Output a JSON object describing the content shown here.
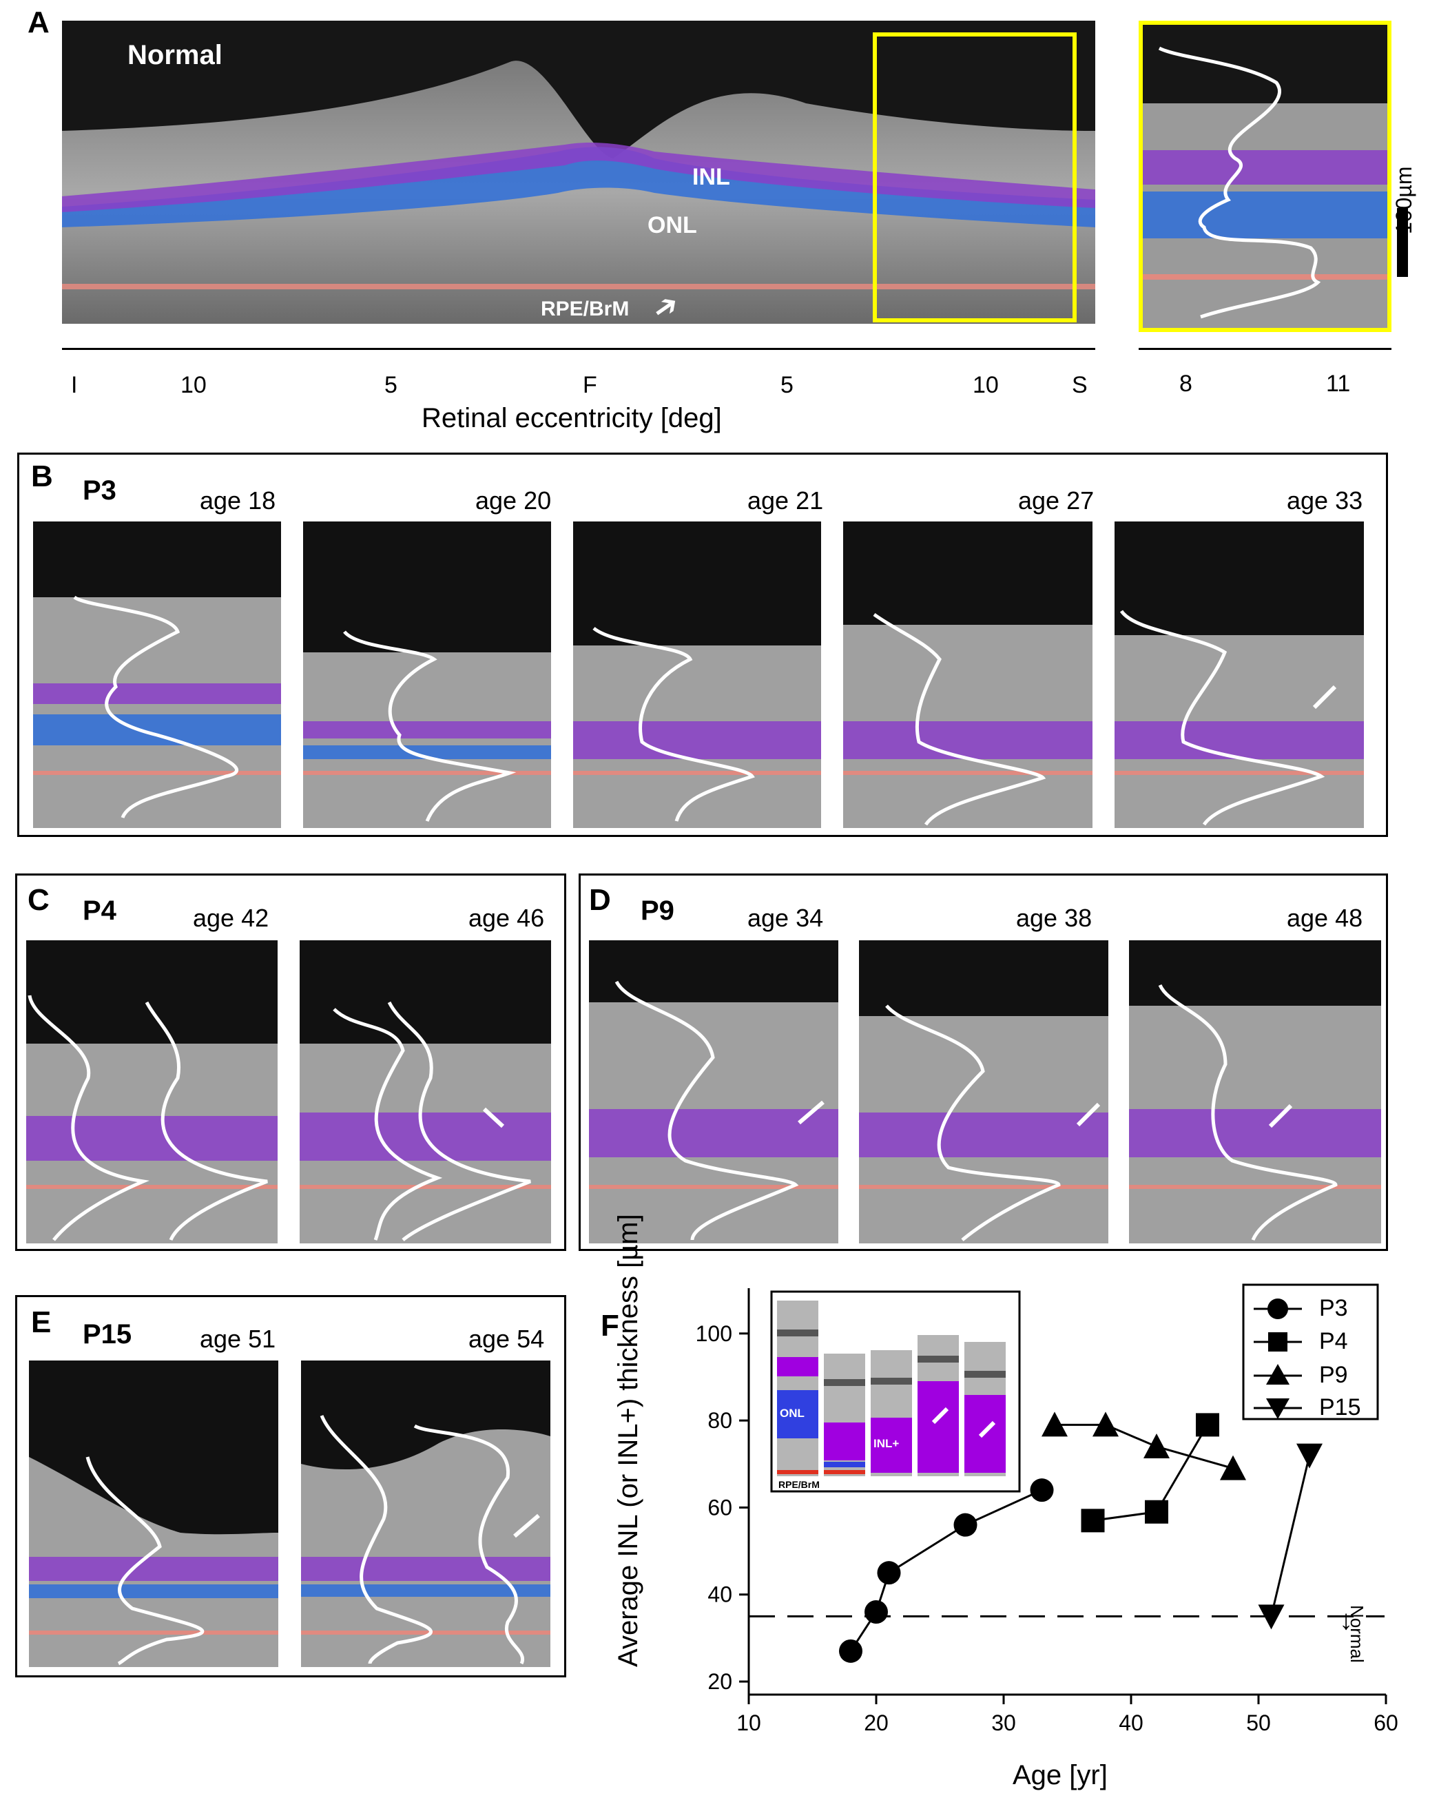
{
  "panelA": {
    "label": "A",
    "normal": "Normal",
    "inl": "INL",
    "onl": "ONL",
    "rpe": "RPE/BrM",
    "scale": "100µm",
    "axis_ticks": [
      "I",
      "10",
      "5",
      "F",
      "5",
      "10",
      "S"
    ],
    "axis_label": "Retinal eccentricity [deg]",
    "inset_ticks": [
      "8",
      "11"
    ],
    "colors": {
      "inl": "#8a3fc8",
      "onl": "#2f6fd8",
      "rpe": "#e08a80",
      "box": "#ffff00"
    }
  },
  "panelB": {
    "label": "B",
    "patient": "P3",
    "ages": [
      "age 18",
      "age 20",
      "age 21",
      "age 27",
      "age 33"
    ]
  },
  "panelC": {
    "label": "C",
    "patient": "P4",
    "ages": [
      "age 42",
      "age 46"
    ]
  },
  "panelD": {
    "label": "D",
    "patient": "P9",
    "ages": [
      "age 34",
      "age 38",
      "age 48"
    ]
  },
  "panelE": {
    "label": "E",
    "patient": "P15",
    "ages": [
      "age 51",
      "age 54"
    ]
  },
  "panelF": {
    "label": "F",
    "inset": {
      "onl": "ONL",
      "inl_plus": "INL+",
      "rpe": "RPE/BrM"
    },
    "normal_label": "Normal",
    "chart_data": {
      "type": "scatter",
      "title": "",
      "xlabel": "Age [yr]",
      "ylabel": "Average INL (or INL+) thickness [µm]",
      "xlim": [
        10,
        60
      ],
      "ylim": [
        17,
        112
      ],
      "xticks": [
        10,
        20,
        30,
        40,
        50,
        60
      ],
      "yticks": [
        20,
        40,
        60,
        80,
        100
      ],
      "normal_line": 35,
      "series": [
        {
          "name": "P3",
          "marker": "circle",
          "x": [
            18,
            20,
            21,
            27,
            33
          ],
          "y": [
            27,
            36,
            45,
            56,
            64
          ]
        },
        {
          "name": "P4",
          "marker": "square",
          "x": [
            37,
            42,
            46
          ],
          "y": [
            57,
            59,
            79
          ]
        },
        {
          "name": "P9",
          "marker": "triangle-up",
          "x": [
            34,
            38,
            42,
            48
          ],
          "y": [
            79,
            79,
            74,
            69
          ]
        },
        {
          "name": "P15",
          "marker": "triangle-down",
          "x": [
            51,
            54
          ],
          "y": [
            35,
            72
          ]
        }
      ],
      "legend": "top-right"
    }
  }
}
